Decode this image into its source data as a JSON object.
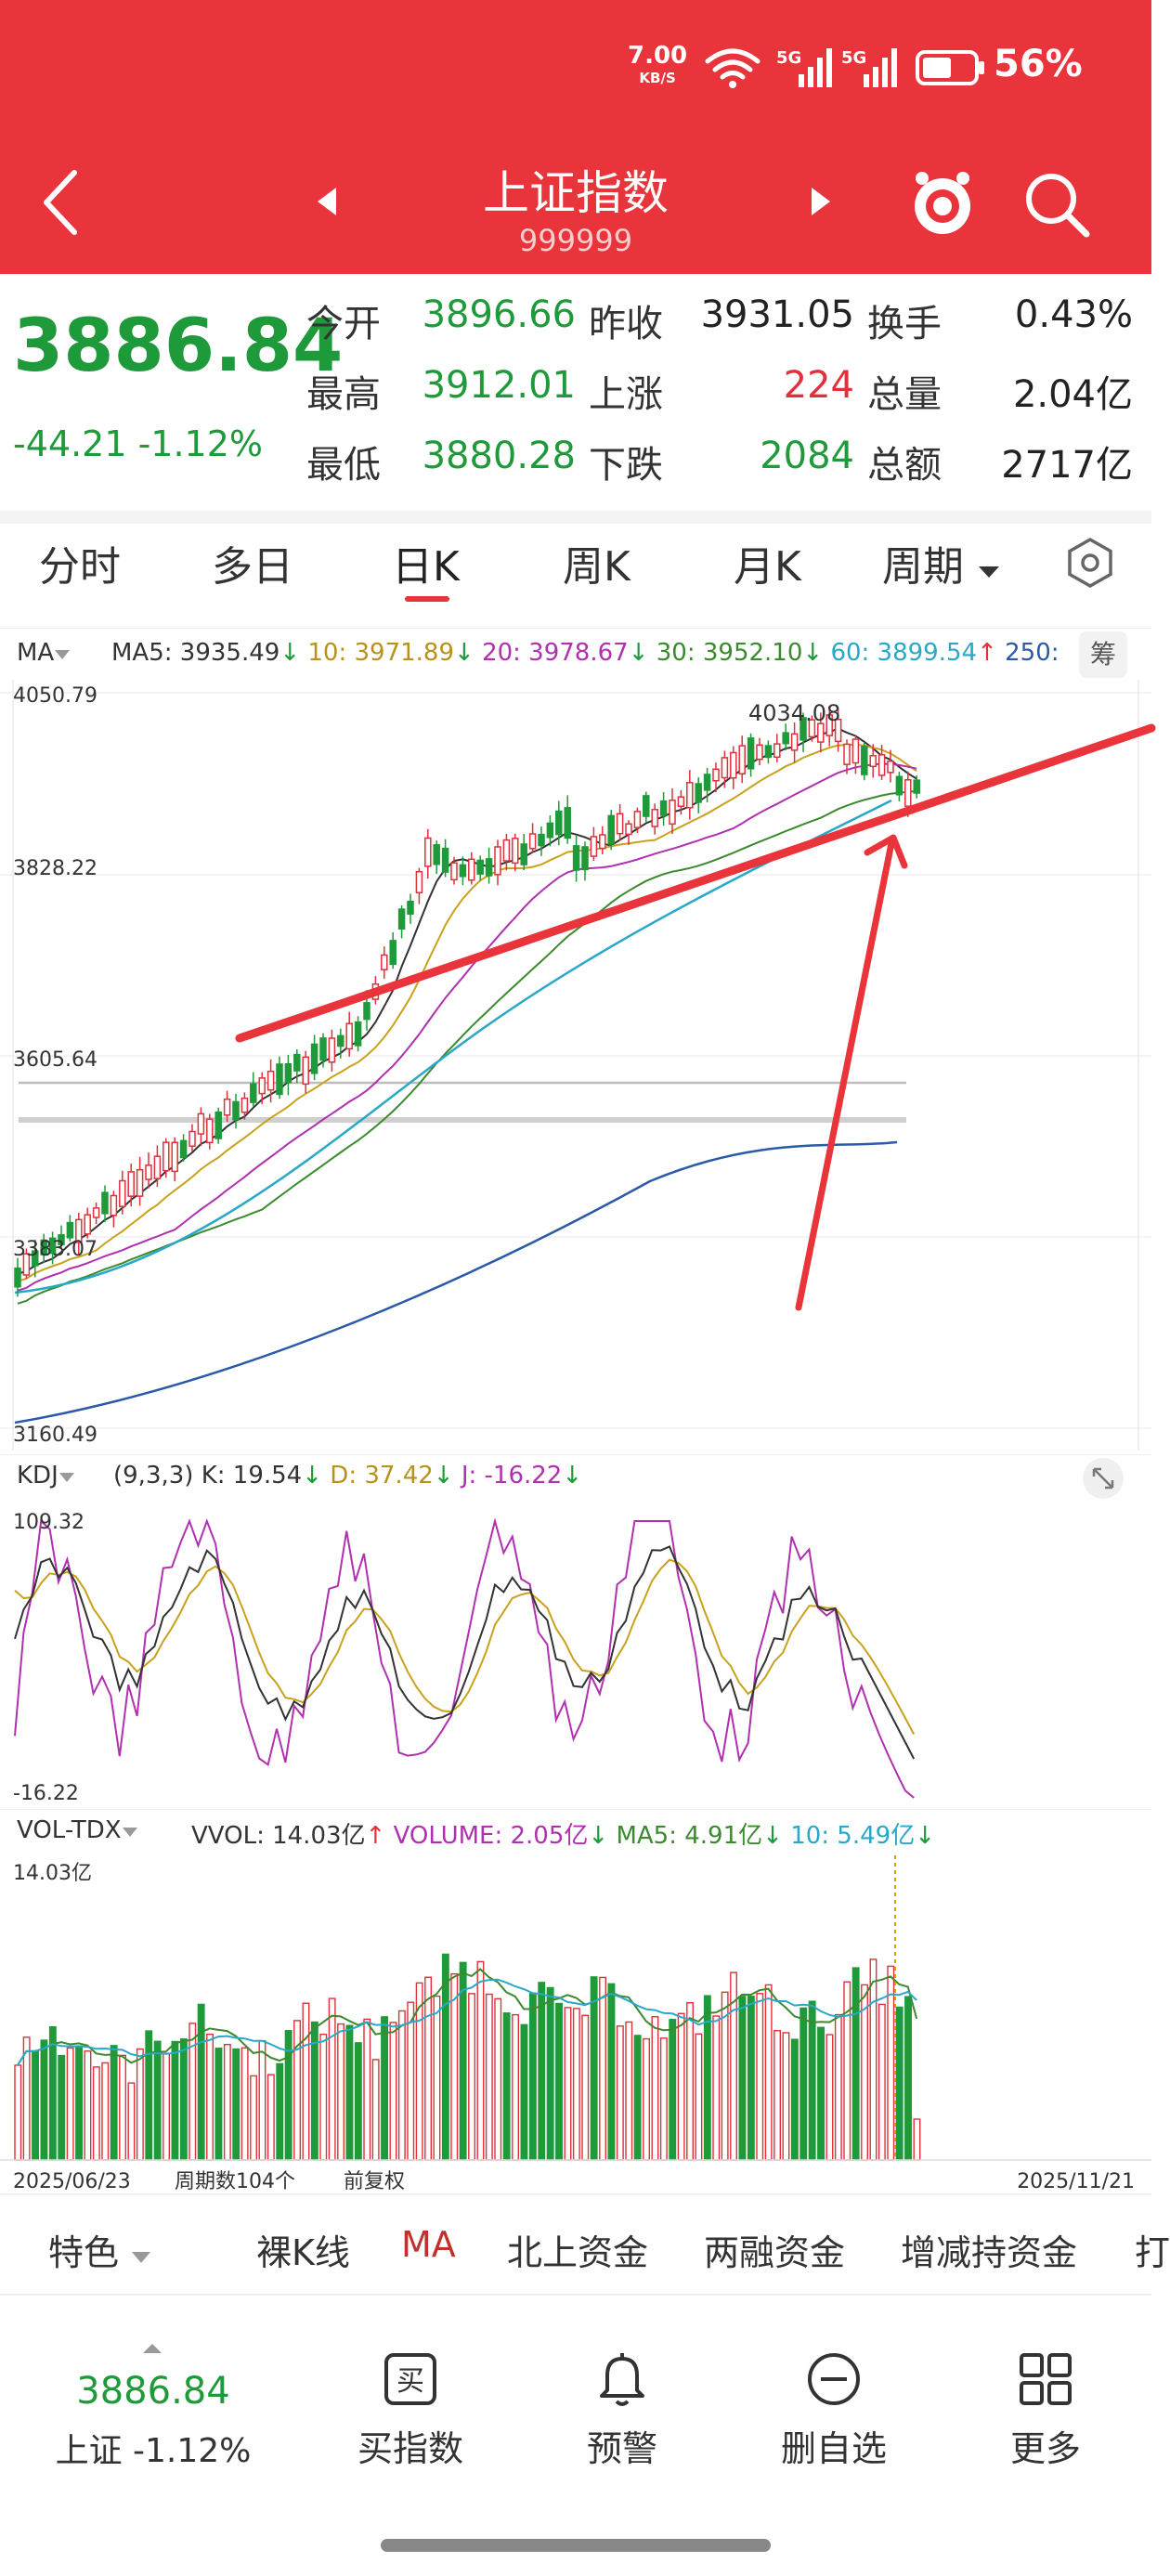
{
  "status": {
    "left_text": "",
    "net_speed": "7.00",
    "net_unit": "KB/S",
    "sig1": "5G",
    "sig2": "5G",
    "battery": "56%"
  },
  "header": {
    "title": "上证指数",
    "code": "999999"
  },
  "quote": {
    "price": "3886.84",
    "change": "-44.21 -1.12%",
    "rows": [
      [
        {
          "label": "今开",
          "value": "3896.66"
        },
        {
          "label": "昨收",
          "value": "3931.05"
        },
        {
          "label": "换手",
          "value": "0.43%"
        }
      ],
      [
        {
          "label": "最高",
          "value": "3912.01"
        },
        {
          "label": "上涨",
          "value": "224"
        },
        {
          "label": "总量",
          "value": "2.04亿"
        }
      ],
      [
        {
          "label": "最低",
          "value": "3880.28"
        },
        {
          "label": "下跌",
          "value": "2084"
        },
        {
          "label": "总额",
          "value": "2717亿"
        }
      ]
    ]
  },
  "tabs": {
    "fenshi": "分时",
    "duori": "多日",
    "rik": "日K",
    "zhouk": "周K",
    "yuek": "月K",
    "zhouqi": "周期"
  },
  "ma_panel": {
    "indicator": "MA",
    "ma5": "MA5: 3935.49",
    "ma10": "10: 3971.89",
    "ma20": "20: 3978.67",
    "ma30": "30: 3952.10",
    "ma60": "60: 3899.54",
    "ma250": "250:",
    "chip_btn": "筹",
    "y_labels": [
      "4050.79",
      "3828.22",
      "3605.64",
      "3383.07",
      "3160.49"
    ],
    "high_label": "4034.08"
  },
  "kdj_panel": {
    "indicator": "KDJ",
    "params": "(9,3,3)",
    "k": "K: 19.54",
    "d": "D: 37.42",
    "j": "J: -16.22",
    "y_top": "109.32",
    "y_bottom": "-16.22"
  },
  "vol_panel": {
    "indicator": "VOL-TDX",
    "vvol": "VVOL: 14.03亿",
    "volume": "VOLUME: 2.05亿",
    "ma5": "MA5: 4.91亿",
    "ma10": "10: 5.49亿",
    "y_top": "14.03亿",
    "start_date": "2025/06/23",
    "period_count": "周期数104个",
    "adjust": "前复权",
    "end_date": "2025/11/21"
  },
  "bottom_tabs": {
    "tese": "特色",
    "luok": "裸K线",
    "ma": "MA",
    "beishang": "北上资金",
    "liangrong": "两融资金",
    "zengjian": "增减持资金",
    "more": "打"
  },
  "bottom_bar": {
    "price": "3886.84",
    "index_change": "上证 -1.12%",
    "buy": "买指数",
    "alert": "预警",
    "remove": "删自选",
    "more": "更多"
  },
  "colors": {
    "header_red": "#e8343a",
    "up_red": "#e0303a",
    "down_green": "#1f9a3a",
    "ma5": "#333333",
    "ma10": "#c9a21c",
    "ma20": "#b030b0",
    "ma30": "#3c8a2e",
    "ma60": "#29a8c8"
  }
}
